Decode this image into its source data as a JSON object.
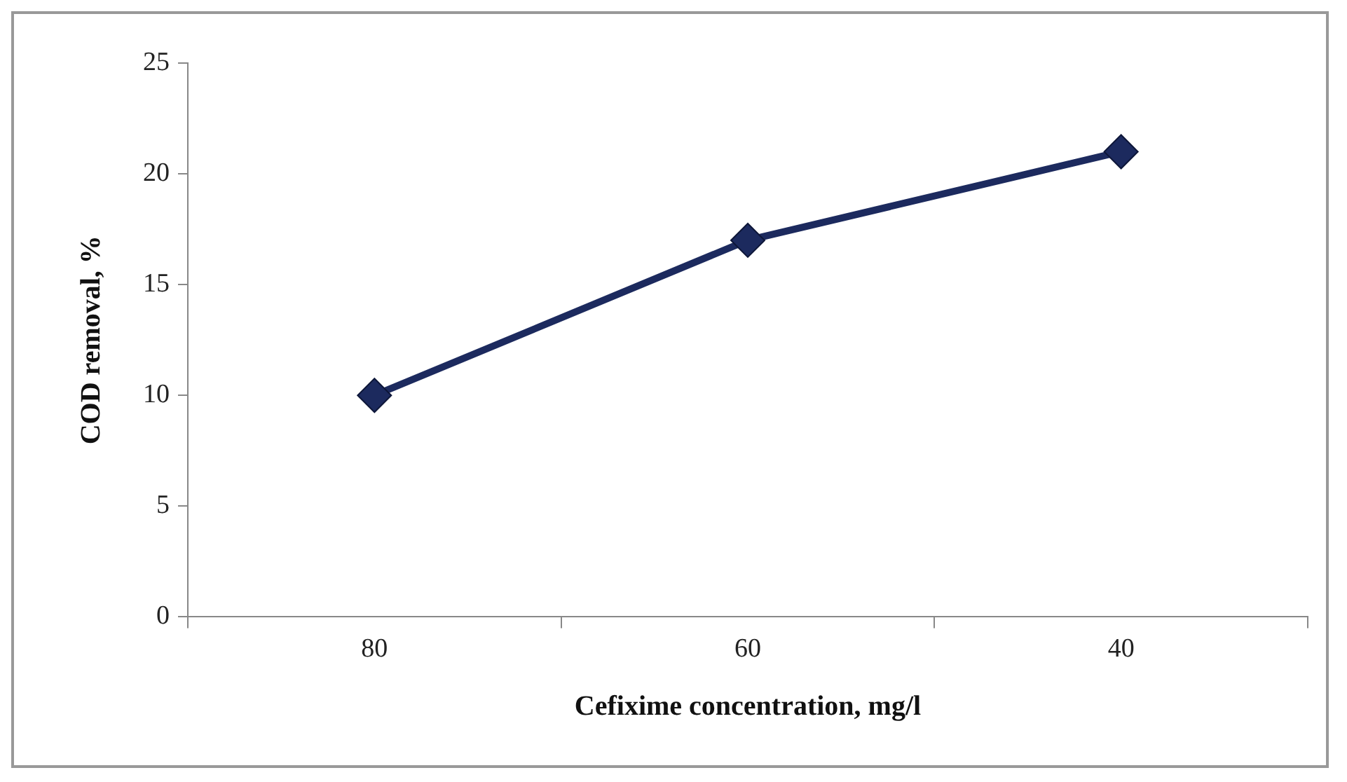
{
  "chart_data": {
    "type": "line",
    "xlabel": "Cefixime concentration, mg/l",
    "ylabel": "COD removal, %",
    "categories": [
      "80",
      "60",
      "40"
    ],
    "series": [
      {
        "color": "#1c2a5e",
        "values": [
          10,
          17,
          21
        ]
      }
    ],
    "ylim": [
      0,
      25
    ],
    "yticks": [
      0,
      5,
      10,
      15,
      20,
      25
    ],
    "grid": false,
    "legend": false,
    "marker": "diamond",
    "line_style": "solid"
  }
}
